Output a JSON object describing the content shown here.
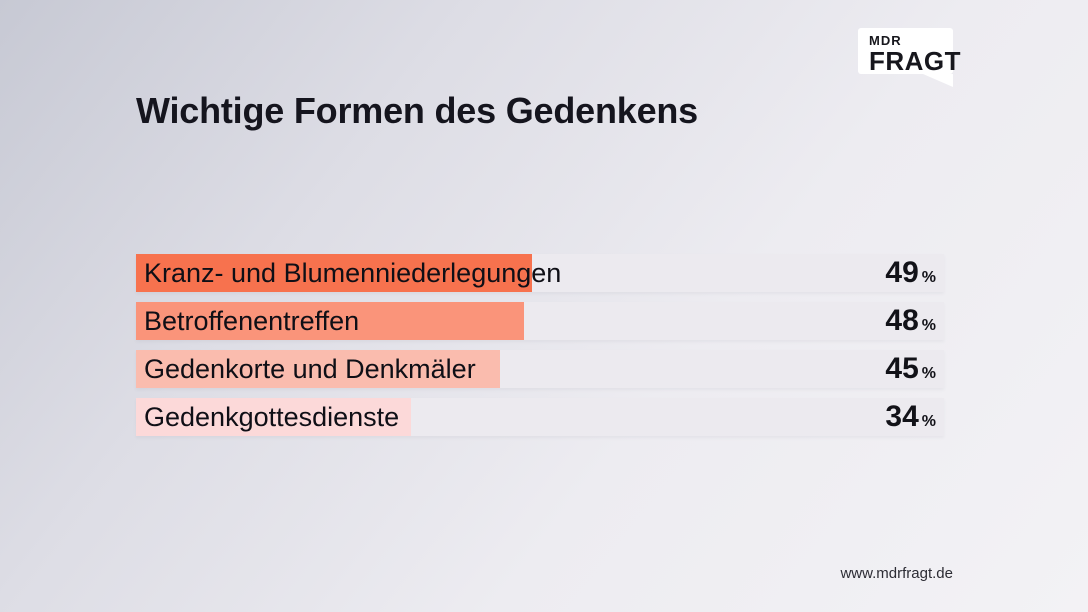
{
  "logo": {
    "line1": "MDR",
    "line2": "FRAGT"
  },
  "header": {
    "title": "Wichtige Formen des Gedenkens"
  },
  "footer": {
    "url": "www.mdrfragt.de"
  },
  "colors": {
    "background_start": "#c7c9d4",
    "background_end": "#f3f2f5",
    "track": "#eceaef",
    "text_dark": "#15151e"
  },
  "chart_data": {
    "type": "bar",
    "orientation": "horizontal",
    "title": "Wichtige Formen des Gedenkens",
    "categories": [
      "Kranz- und Blumenniederlegungen",
      "Betroffenentreffen",
      "Gedenkorte und Denkmäler",
      "Gedenkgottesdienste"
    ],
    "values": [
      49,
      48,
      45,
      34
    ],
    "unit": "%",
    "xlim": [
      0,
      100
    ],
    "grid": false,
    "legend": false,
    "bar_colors": [
      "#f7724e",
      "#fa947a",
      "#fabcae",
      "#fcd9d9"
    ],
    "track_color": "#eceaef"
  }
}
